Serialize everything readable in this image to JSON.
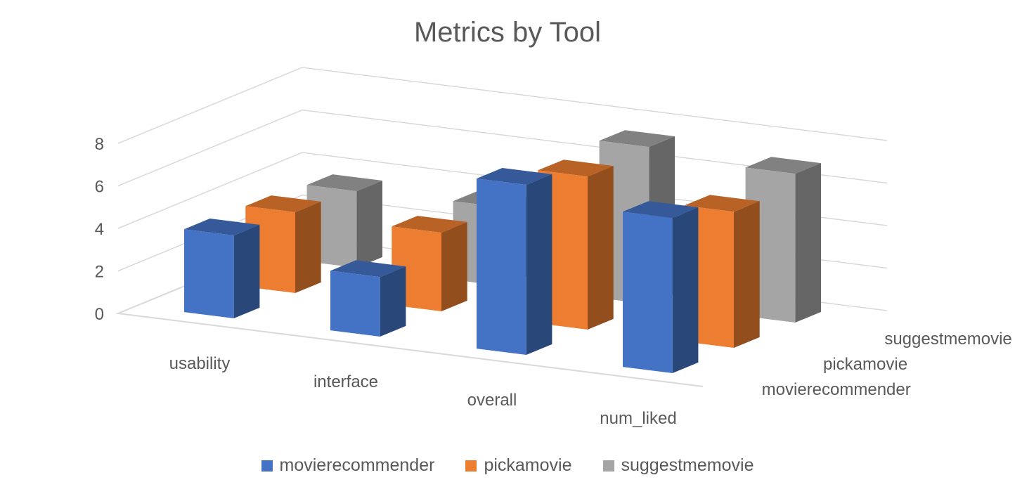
{
  "chart_data": {
    "type": "bar",
    "title": "Metrics by Tool",
    "categories": [
      "usability",
      "interface",
      "overall",
      "num_liked"
    ],
    "series": [
      {
        "name": "movierecommender",
        "values": [
          3.9,
          2.8,
          8.0,
          7.3
        ],
        "color": "#4472C4"
      },
      {
        "name": "pickamovie",
        "values": [
          3.8,
          3.7,
          7.2,
          6.4
        ],
        "color": "#ED7D31"
      },
      {
        "name": "suggestmemovie",
        "values": [
          3.6,
          3.7,
          7.4,
          7.0
        ],
        "color": "#A5A5A5"
      }
    ],
    "ylim": [
      0,
      8
    ],
    "yticks": [
      "0",
      "2",
      "4",
      "6",
      "8"
    ],
    "grid": true,
    "legend_position": "bottom",
    "projection": "3d"
  }
}
